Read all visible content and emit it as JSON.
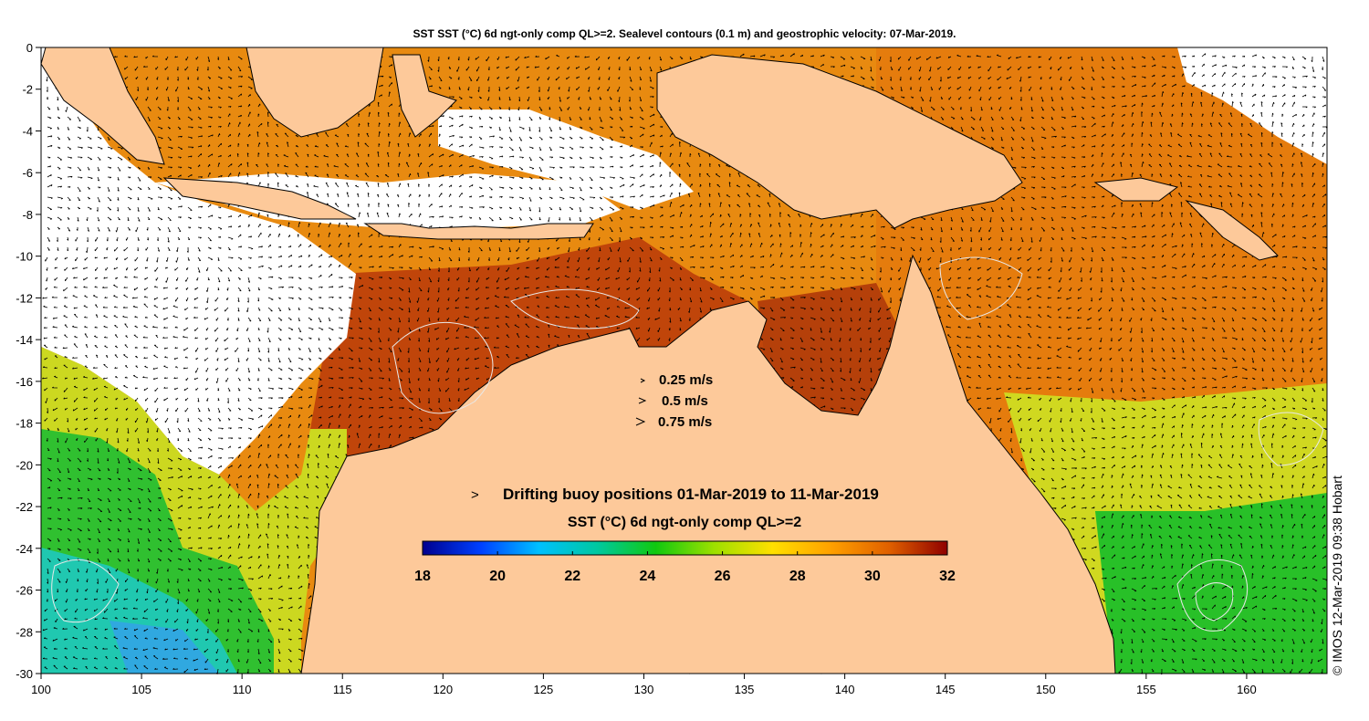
{
  "title": "SST SST (°C) 6d ngt-only comp QL>=2. Sealevel contours (0.1 m) and geostrophic velocity: 07-Mar-2019.",
  "map": {
    "lon_range": [
      100,
      164
    ],
    "lat_range": [
      -30,
      0
    ],
    "x_ticks": [
      "100",
      "105",
      "110",
      "115",
      "120",
      "125",
      "130",
      "135",
      "140",
      "145",
      "150",
      "155",
      "160"
    ],
    "y_ticks": [
      "0",
      "-2",
      "-4",
      "-6",
      "-8",
      "-10",
      "-12",
      "-14",
      "-16",
      "-18",
      "-20",
      "-22",
      "-24",
      "-26",
      "-28",
      "-30"
    ],
    "colors": {
      "land": "#fdc99a",
      "nodata": "#ffffff",
      "coast": "#000000",
      "contour": "#e8e8e8"
    }
  },
  "velocity_legend": {
    "items": [
      "0.25 m/s",
      "0.5 m/s",
      "0.75 m/s"
    ]
  },
  "buoy_legend": {
    "marker": ">",
    "marker_color": "#ff33ff",
    "label": "Drifting buoy positions 01-Mar-2019 to 11-Mar-2019"
  },
  "colorbar": {
    "title": "SST (°C) 6d ngt-only comp QL>=2",
    "min": 18,
    "max": 32,
    "tick_labels": [
      "18",
      "20",
      "22",
      "24",
      "26",
      "28",
      "30",
      "32"
    ],
    "colors": [
      "#00008f",
      "#0040ff",
      "#00c0ff",
      "#00c8a0",
      "#10c810",
      "#9ee000",
      "#ffe000",
      "#ffa000",
      "#e06000",
      "#8f0000"
    ]
  },
  "copyright": "© IMOS 12-Mar-2019 09:38 Hobart"
}
